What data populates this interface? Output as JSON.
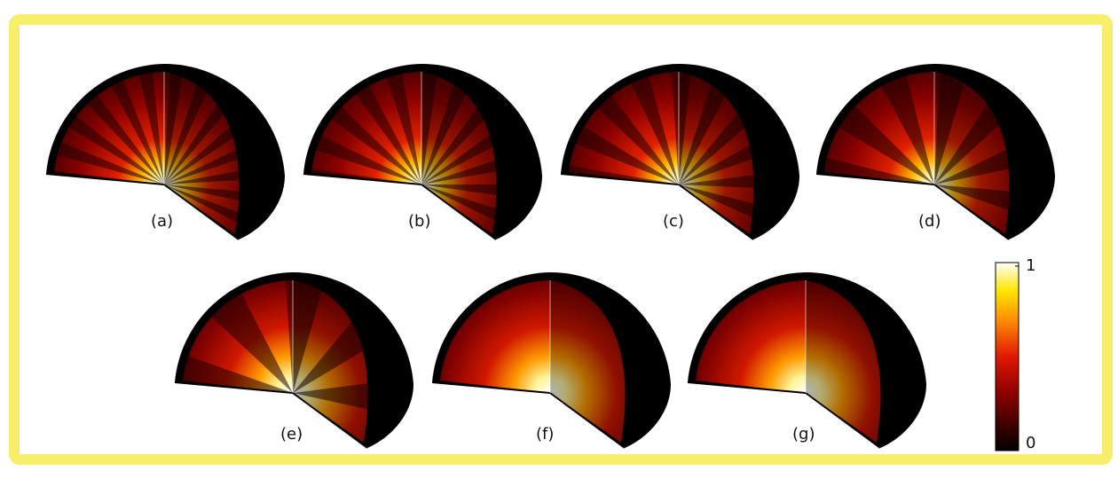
{
  "panels": [
    "(a)",
    "(b)",
    "(c)",
    "(d)",
    "(e)",
    "(f)",
    "(g)"
  ],
  "colorbar": {
    "ticks": [
      0,
      1
    ]
  }
}
